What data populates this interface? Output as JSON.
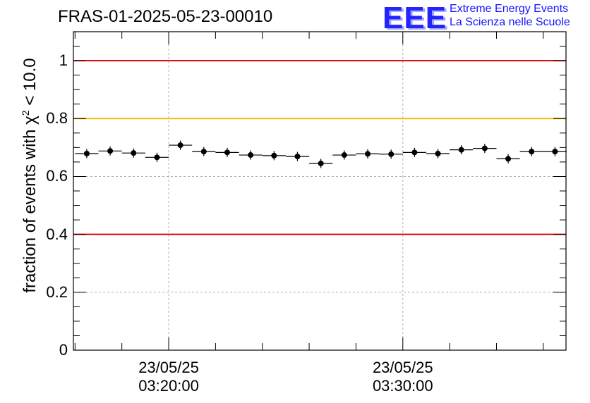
{
  "title": "FRAS-01-2025-05-23-00010",
  "logo": {
    "mark": "EEE",
    "line1": "Extreme Energy Events",
    "line2": "La Scienza nelle Scuole"
  },
  "chart_data": {
    "type": "scatter",
    "title": "FRAS-01-2025-05-23-00010",
    "ylabel_prefix": "fraction of events with ",
    "ylabel_symbol": "χ",
    "ylabel_sup": "2",
    "ylabel_suffix": " < 10.0",
    "ylim": [
      0,
      1.1
    ],
    "yticks": [
      0,
      0.2,
      0.4,
      0.6,
      0.8,
      1
    ],
    "ytick_labels": [
      "0",
      "0.2",
      "0.4",
      "0.6",
      "0.8",
      "1"
    ],
    "xlim_minutes": [
      15.93,
      36.97
    ],
    "xticks": [
      {
        "minute": 20,
        "date": "23/05/25",
        "time": "03:20:00"
      },
      {
        "minute": 30,
        "date": "23/05/25",
        "time": "03:30:00"
      }
    ],
    "grid": true,
    "bin_width_minutes": 1.0,
    "points_x_minutes": [
      16.5,
      17.5,
      18.5,
      19.5,
      20.5,
      21.5,
      22.5,
      23.5,
      24.5,
      25.5,
      26.5,
      27.5,
      28.5,
      29.5,
      30.5,
      31.5,
      32.5,
      33.5,
      34.5,
      35.5,
      36.5
    ],
    "points_y": [
      0.679,
      0.688,
      0.681,
      0.666,
      0.708,
      0.686,
      0.683,
      0.674,
      0.672,
      0.669,
      0.645,
      0.674,
      0.678,
      0.677,
      0.683,
      0.679,
      0.692,
      0.697,
      0.661,
      0.686,
      0.686
    ],
    "y_err": [
      0.016,
      0.016,
      0.016,
      0.016,
      0.016,
      0.016,
      0.016,
      0.016,
      0.016,
      0.016,
      0.016,
      0.016,
      0.016,
      0.016,
      0.016,
      0.016,
      0.016,
      0.016,
      0.016,
      0.016,
      0.016
    ],
    "reference_lines": [
      {
        "y": 1.0,
        "color": "#e00000"
      },
      {
        "y": 0.8,
        "color": "#f5c000"
      },
      {
        "y": 0.4,
        "color": "#e00000"
      }
    ]
  }
}
